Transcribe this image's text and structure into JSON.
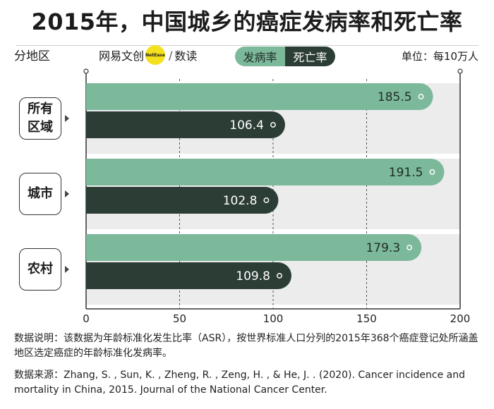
{
  "header": {
    "title": "2015年，中国城乡的癌症发病率和死亡率",
    "region_label": "分地区",
    "unit": "单位：每10万人"
  },
  "brand": {
    "left_text": "网易文创",
    "circle_text": "NetEase",
    "slash": "/",
    "right_text": "数读"
  },
  "legend": {
    "incidence": "发病率",
    "mortality": "死亡率"
  },
  "colors": {
    "incidence": "#7cb89a",
    "mortality": "#2c3d36",
    "band": "#ececec"
  },
  "notes": {
    "explanation": "数据说明：该数据为年龄标准化发生比率（ASR），按世界标准人口分列的2015年368个癌症登记处所涵盖地区选定癌症的年龄标准化发病率。",
    "source": "数据来源：Zhang, S. , Sun, K. , Zheng, R. , Zeng, H. , & He, J. . (2020). Cancer incidence and mortality in China, 2015. Journal of the National Cancer Center."
  },
  "chart_data": {
    "type": "bar",
    "orientation": "horizontal",
    "categories": [
      "所有区域",
      "城市",
      "农村"
    ],
    "category_lines": [
      [
        "所有",
        "区域"
      ],
      [
        "城市"
      ],
      [
        "农村"
      ]
    ],
    "series": [
      {
        "name": "发病率",
        "values": [
          185.5,
          191.5,
          179.3
        ]
      },
      {
        "name": "死亡率",
        "values": [
          106.4,
          102.8,
          109.8
        ]
      }
    ],
    "value_labels": [
      [
        "185.5",
        "191.5",
        "179.3"
      ],
      [
        "106.4",
        "102.8",
        "109.8"
      ]
    ],
    "xlim": [
      0,
      200
    ],
    "xticks": [
      0,
      50,
      100,
      150,
      200
    ],
    "title": "2015年，中国城乡的癌症发病率和死亡率",
    "xlabel": "",
    "ylabel": "",
    "grid": true
  }
}
